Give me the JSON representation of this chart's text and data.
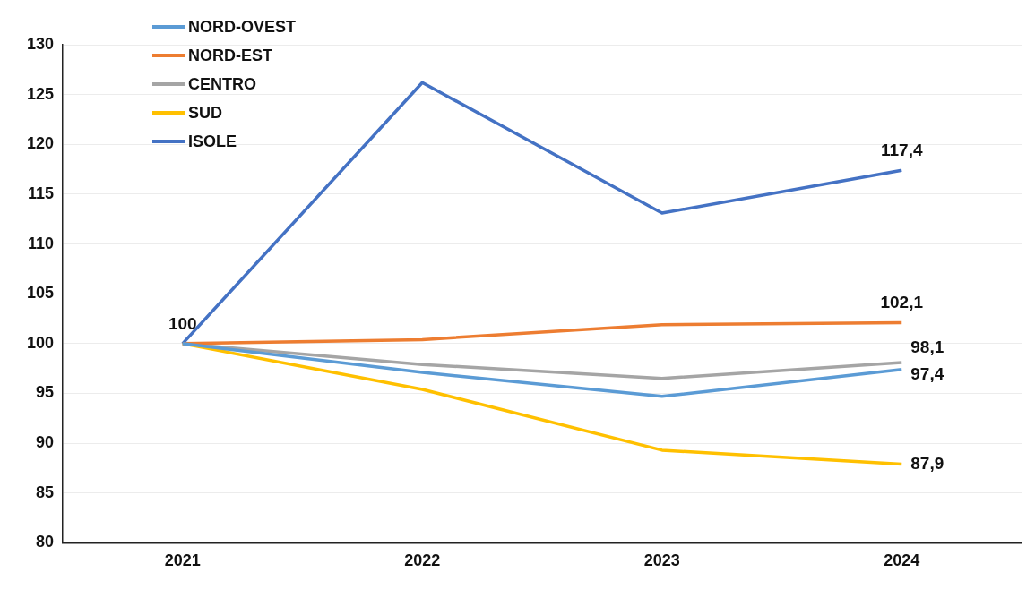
{
  "chart_data": {
    "type": "line",
    "categories": [
      "2021",
      "2022",
      "2023",
      "2024"
    ],
    "series": [
      {
        "name": "NORD-OVEST",
        "color": "#5b9bd5",
        "values": [
          100,
          97.1,
          94.7,
          97.4
        ],
        "value_labels": [
          null,
          null,
          null,
          "97,4"
        ]
      },
      {
        "name": "NORD-EST",
        "color": "#ed7d31",
        "values": [
          100,
          100.4,
          101.9,
          102.1
        ],
        "value_labels": [
          null,
          null,
          null,
          "102,1"
        ]
      },
      {
        "name": "CENTRO",
        "color": "#a5a5a5",
        "values": [
          100,
          97.9,
          96.5,
          98.1
        ],
        "value_labels": [
          null,
          null,
          null,
          "98,1"
        ]
      },
      {
        "name": "SUD",
        "color": "#ffc000",
        "values": [
          100,
          95.4,
          89.3,
          87.9
        ],
        "value_labels": [
          null,
          null,
          null,
          "87,9"
        ]
      },
      {
        "name": "ISOLE",
        "color": "#4472c4",
        "values": [
          100,
          126.2,
          113.1,
          117.4
        ],
        "value_labels": [
          "100",
          null,
          null,
          "117,4"
        ]
      }
    ],
    "ylim": [
      80,
      130
    ],
    "yticks": [
      80,
      85,
      90,
      95,
      100,
      105,
      110,
      115,
      120,
      125,
      130
    ],
    "grid": "y",
    "legend": "top left",
    "marker": "none",
    "line_style": "solid"
  }
}
